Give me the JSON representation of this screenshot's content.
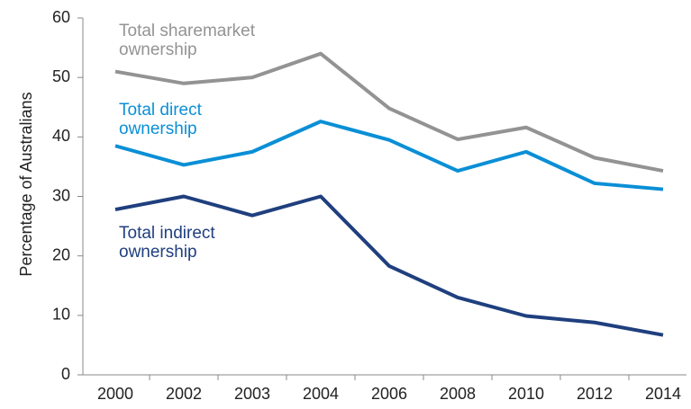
{
  "chart_data": {
    "type": "line",
    "y_label": "Percentage of Australians",
    "categories": [
      "2000",
      "2002",
      "2003",
      "2004",
      "2006",
      "2008",
      "2010",
      "2012",
      "2014"
    ],
    "series": [
      {
        "name": "Total sharemarket ownership",
        "color": "#939393",
        "values": [
          51,
          49,
          50,
          54,
          44.8,
          39.6,
          41.6,
          36.5,
          34.3
        ]
      },
      {
        "name": "Total direct ownership",
        "color": "#0a8fd6",
        "values": [
          38.5,
          35.3,
          37.5,
          42.6,
          39.5,
          34.3,
          37.5,
          32.2,
          31.2
        ]
      },
      {
        "name": "Total indirect ownership",
        "color": "#1f3f7e",
        "values": [
          27.8,
          30,
          26.8,
          30,
          18.3,
          13,
          9.9,
          8.8,
          6.7
        ]
      }
    ],
    "ylim": [
      0,
      60
    ],
    "yticks": [
      0,
      10,
      20,
      30,
      40,
      50,
      60
    ]
  }
}
